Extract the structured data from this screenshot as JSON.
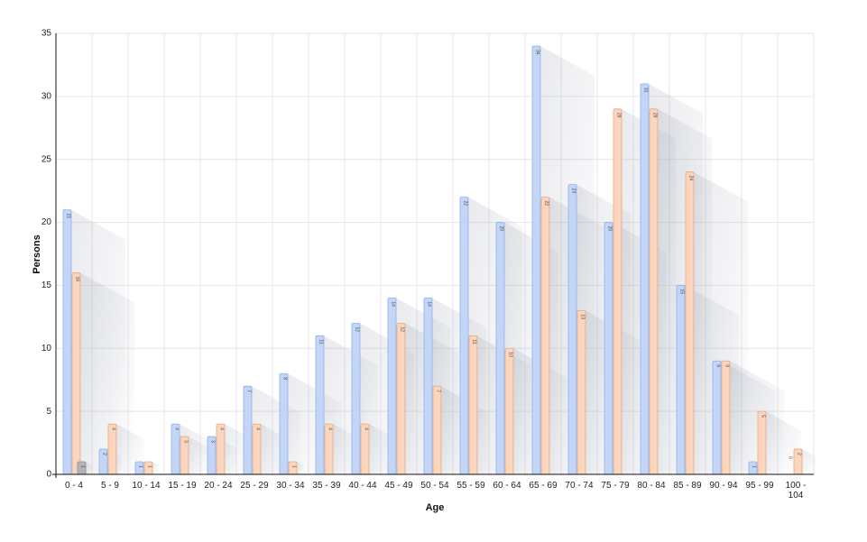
{
  "chart_data": {
    "type": "bar",
    "xlabel": "Age",
    "ylabel": "Persons",
    "ylim": [
      0,
      35
    ],
    "yticks": [
      0,
      5,
      10,
      15,
      20,
      25,
      30,
      35
    ],
    "grid": true,
    "legend": "none",
    "categories": [
      "0 - 4",
      "5 - 9",
      "10 - 14",
      "15 - 19",
      "20 - 24",
      "25 - 29",
      "30 - 34",
      "35 - 39",
      "40 - 44",
      "45 - 49",
      "50 - 54",
      "55 - 59",
      "60 - 64",
      "65 - 69",
      "70 - 74",
      "75 - 79",
      "80 - 84",
      "85 - 89",
      "90 - 94",
      "95 - 99",
      "100 - 104"
    ],
    "series": [
      {
        "color": "#c2d6f7",
        "stroke": "#8fb0e8",
        "values": [
          21,
          2,
          1,
          4,
          3,
          7,
          8,
          11,
          12,
          14,
          14,
          22,
          20,
          34,
          23,
          20,
          31,
          15,
          9,
          1,
          0
        ]
      },
      {
        "color": "#fbd5bd",
        "stroke": "#e8a882",
        "values": [
          16,
          4,
          1,
          3,
          4,
          4,
          1,
          4,
          4,
          12,
          7,
          11,
          10,
          22,
          13,
          29,
          29,
          24,
          9,
          5,
          2
        ]
      },
      {
        "color": "#b3b3b8",
        "stroke": "#8e8e94",
        "values": [
          1,
          null,
          null,
          null,
          null,
          null,
          null,
          null,
          null,
          null,
          null,
          null,
          null,
          null,
          null,
          null,
          null,
          null,
          null,
          null,
          null
        ]
      }
    ]
  }
}
